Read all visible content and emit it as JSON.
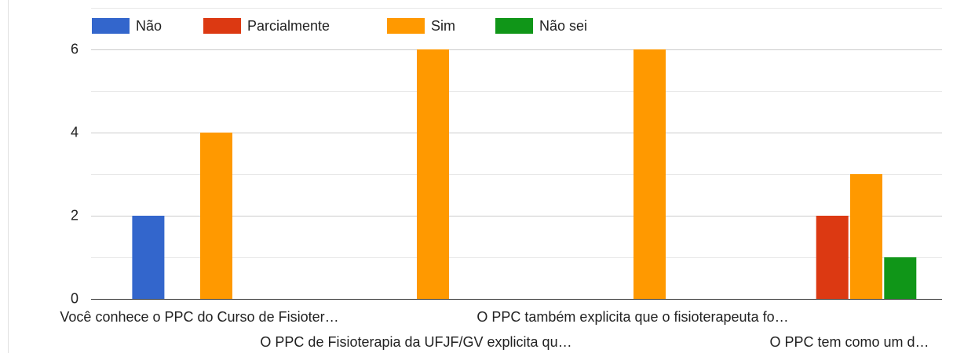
{
  "chart_data": {
    "type": "bar",
    "categories": [
      "Você conhece o PPC do Curso de Fisioter…",
      "O PPC de Fisioterapia da UFJF/GV explicita qu…",
      "O PPC também explicita que o fisioterapeuta fo…",
      "O PPC tem como um d…"
    ],
    "series": [
      {
        "name": "Não",
        "color": "#3366cc",
        "values": [
          2,
          0,
          0,
          0
        ]
      },
      {
        "name": "Parcialmente",
        "color": "#dc3912",
        "values": [
          0,
          0,
          0,
          2
        ]
      },
      {
        "name": "Sim",
        "color": "#ff9900",
        "values": [
          4,
          6,
          6,
          3
        ]
      },
      {
        "name": "Não sei",
        "color": "#109618",
        "values": [
          0,
          0,
          0,
          1
        ]
      }
    ],
    "ylim": [
      0,
      7
    ],
    "yticks": [
      0,
      2,
      4,
      6
    ],
    "minor_gridlines": [
      1,
      3,
      5,
      7
    ],
    "grid": true,
    "legend": "top"
  }
}
